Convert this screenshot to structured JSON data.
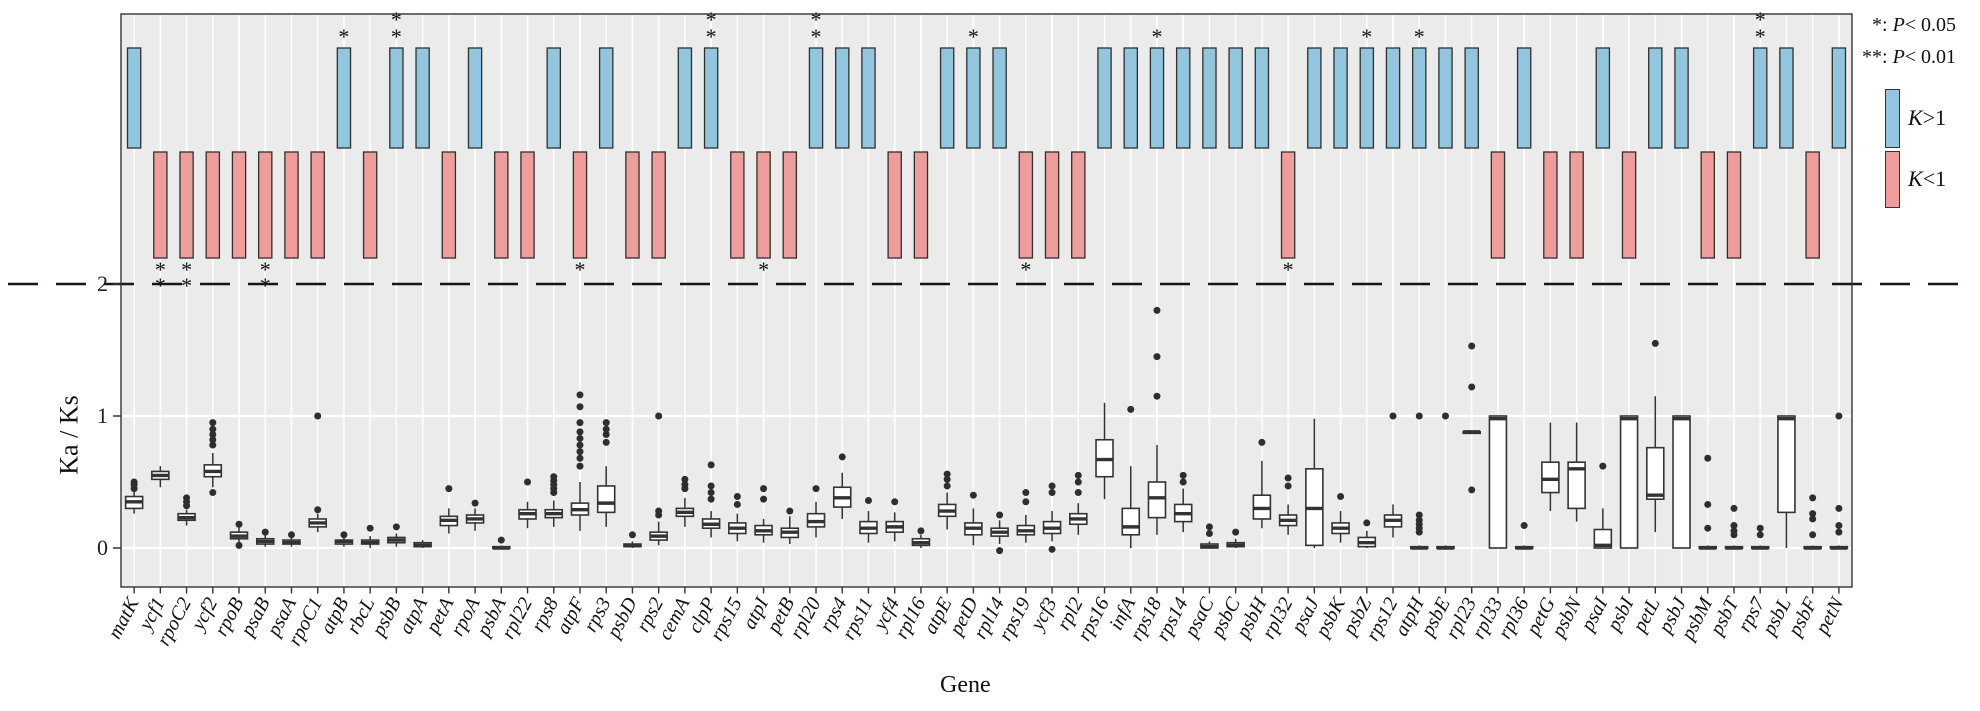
{
  "figure": {
    "xlabel": "Gene",
    "ylabel": "Ka / Ks",
    "yticks": [
      0,
      1,
      2
    ],
    "dashed_line_value": 2
  },
  "legend": {
    "sig1_pre": "*: ",
    "sig2_pre": "**: ",
    "p": "P",
    "sig1_rest": "< 0.05",
    "sig2_rest": "< 0.01",
    "k": "K",
    "kgt_rest": ">1",
    "klt_rest": "<1"
  },
  "colors": {
    "k_gt_fill": "#92C5DE",
    "k_lt_fill": "#EE9D9D",
    "bar_stroke": "#2f2f2f",
    "box_stroke": "#333333",
    "outlier_fill": "#2e2e2e",
    "panel_bg": "#EBEBEB",
    "gridline": "#FFFFFF",
    "dash_line": "#15151f",
    "text": "#111111"
  },
  "chart_data": {
    "type": "box+bar",
    "title": "",
    "xlabel": "Gene",
    "ylabel": "Ka / Ks",
    "ylim": [
      -0.3,
      2
    ],
    "note": "Each gene: k = K>1 (blue, gt) or K<1 (pink, lt); sig = asterisk count; box = [whisker_lo, q1, median, q3, whisker_hi]; outliers = points",
    "genes": [
      {
        "name": "matK",
        "k": "gt",
        "sig": 0,
        "box": [
          0.26,
          0.3,
          0.35,
          0.39,
          0.43
        ],
        "outliers": [
          0.45,
          0.48,
          0.5
        ]
      },
      {
        "name": "ycf1",
        "k": "lt",
        "sig": 2,
        "box": [
          0.46,
          0.52,
          0.55,
          0.58,
          0.62
        ],
        "outliers": []
      },
      {
        "name": "rpoC2",
        "k": "lt",
        "sig": 2,
        "box": [
          0.17,
          0.21,
          0.23,
          0.26,
          0.29
        ],
        "outliers": [
          0.32,
          0.35,
          0.38
        ]
      },
      {
        "name": "ycf2",
        "k": "lt",
        "sig": 0,
        "box": [
          0.46,
          0.54,
          0.58,
          0.63,
          0.72
        ],
        "outliers": [
          0.42,
          0.78,
          0.82,
          0.86,
          0.9,
          0.95
        ]
      },
      {
        "name": "rpoB",
        "k": "lt",
        "sig": 0,
        "box": [
          0.04,
          0.07,
          0.09,
          0.12,
          0.16
        ],
        "outliers": [
          0.02,
          0.18
        ]
      },
      {
        "name": "psaB",
        "k": "lt",
        "sig": 2,
        "box": [
          0.01,
          0.03,
          0.05,
          0.07,
          0.1
        ],
        "outliers": [
          0.12
        ]
      },
      {
        "name": "psaA",
        "k": "lt",
        "sig": 0,
        "box": [
          0.01,
          0.03,
          0.04,
          0.06,
          0.08
        ],
        "outliers": [
          0.1
        ]
      },
      {
        "name": "rpoC1",
        "k": "lt",
        "sig": 0,
        "box": [
          0.12,
          0.16,
          0.19,
          0.22,
          0.26
        ],
        "outliers": [
          0.29,
          1.0
        ]
      },
      {
        "name": "atpB",
        "k": "gt",
        "sig": 1,
        "box": [
          0.01,
          0.03,
          0.05,
          0.06,
          0.08
        ],
        "outliers": [
          0.1
        ]
      },
      {
        "name": "rbcL",
        "k": "lt",
        "sig": 0,
        "box": [
          0.0,
          0.03,
          0.04,
          0.06,
          0.09
        ],
        "outliers": [
          0.15
        ]
      },
      {
        "name": "psbB",
        "k": "gt",
        "sig": 2,
        "box": [
          0.01,
          0.04,
          0.06,
          0.08,
          0.11
        ],
        "outliers": [
          0.16
        ]
      },
      {
        "name": "atpA",
        "k": "gt",
        "sig": 0,
        "box": [
          0.0,
          0.01,
          0.02,
          0.04,
          0.06
        ],
        "outliers": []
      },
      {
        "name": "petA",
        "k": "lt",
        "sig": 0,
        "box": [
          0.11,
          0.17,
          0.21,
          0.24,
          0.3
        ],
        "outliers": [
          0.45
        ]
      },
      {
        "name": "rpoA",
        "k": "gt",
        "sig": 0,
        "box": [
          0.13,
          0.19,
          0.22,
          0.25,
          0.3
        ],
        "outliers": [
          0.34
        ]
      },
      {
        "name": "psbA",
        "k": "lt",
        "sig": 0,
        "box": [
          0.0,
          0.0,
          0.0,
          0.01,
          0.02
        ],
        "outliers": [
          0.06
        ]
      },
      {
        "name": "rpl22",
        "k": "lt",
        "sig": 0,
        "box": [
          0.15,
          0.22,
          0.26,
          0.29,
          0.35
        ],
        "outliers": [
          0.5
        ]
      },
      {
        "name": "rps8",
        "k": "gt",
        "sig": 0,
        "box": [
          0.16,
          0.23,
          0.26,
          0.29,
          0.36
        ],
        "outliers": [
          0.42,
          0.45,
          0.48,
          0.51,
          0.54
        ]
      },
      {
        "name": "atpF",
        "k": "lt",
        "sig": 1,
        "box": [
          0.13,
          0.25,
          0.29,
          0.34,
          0.5
        ],
        "outliers": [
          0.62,
          0.68,
          0.73,
          0.78,
          0.83,
          0.88,
          0.95,
          1.07,
          1.16
        ]
      },
      {
        "name": "rps3",
        "k": "gt",
        "sig": 0,
        "box": [
          0.16,
          0.27,
          0.34,
          0.47,
          0.62
        ],
        "outliers": [
          0.8,
          0.86,
          0.9,
          0.95
        ]
      },
      {
        "name": "psbD",
        "k": "lt",
        "sig": 0,
        "box": [
          0.0,
          0.01,
          0.02,
          0.03,
          0.05
        ],
        "outliers": [
          0.1
        ]
      },
      {
        "name": "rps2",
        "k": "lt",
        "sig": 0,
        "box": [
          0.02,
          0.06,
          0.09,
          0.12,
          0.2
        ],
        "outliers": [
          0.25,
          0.28,
          1.0
        ]
      },
      {
        "name": "cemA",
        "k": "gt",
        "sig": 0,
        "box": [
          0.16,
          0.24,
          0.27,
          0.3,
          0.38
        ],
        "outliers": [
          0.45,
          0.48,
          0.52
        ]
      },
      {
        "name": "clpP",
        "k": "gt",
        "sig": 2,
        "box": [
          0.08,
          0.15,
          0.18,
          0.22,
          0.28
        ],
        "outliers": [
          0.37,
          0.42,
          0.47,
          0.63
        ]
      },
      {
        "name": "rps15",
        "k": "lt",
        "sig": 0,
        "box": [
          0.05,
          0.11,
          0.15,
          0.19,
          0.26
        ],
        "outliers": [
          0.33,
          0.39
        ]
      },
      {
        "name": "atpI",
        "k": "lt",
        "sig": 1,
        "box": [
          0.04,
          0.1,
          0.13,
          0.17,
          0.22
        ],
        "outliers": [
          0.37,
          0.45
        ]
      },
      {
        "name": "petB",
        "k": "lt",
        "sig": 0,
        "box": [
          0.03,
          0.08,
          0.12,
          0.15,
          0.24
        ],
        "outliers": [
          0.28
        ]
      },
      {
        "name": "rpl20",
        "k": "gt",
        "sig": 2,
        "box": [
          0.08,
          0.16,
          0.2,
          0.26,
          0.35
        ],
        "outliers": [
          0.45
        ]
      },
      {
        "name": "rps4",
        "k": "gt",
        "sig": 0,
        "box": [
          0.22,
          0.31,
          0.38,
          0.46,
          0.57
        ],
        "outliers": [
          0.69
        ]
      },
      {
        "name": "rps11",
        "k": "gt",
        "sig": 0,
        "box": [
          0.04,
          0.11,
          0.15,
          0.2,
          0.28
        ],
        "outliers": [
          0.36
        ]
      },
      {
        "name": "ycf4",
        "k": "lt",
        "sig": 0,
        "box": [
          0.05,
          0.12,
          0.16,
          0.2,
          0.27
        ],
        "outliers": [
          0.35
        ]
      },
      {
        "name": "rpl16",
        "k": "lt",
        "sig": 0,
        "box": [
          0.0,
          0.02,
          0.04,
          0.07,
          0.1
        ],
        "outliers": [
          0.13
        ]
      },
      {
        "name": "atpE",
        "k": "gt",
        "sig": 0,
        "box": [
          0.14,
          0.24,
          0.28,
          0.33,
          0.42
        ],
        "outliers": [
          0.47,
          0.52,
          0.56
        ]
      },
      {
        "name": "petD",
        "k": "gt",
        "sig": 1,
        "box": [
          0.02,
          0.1,
          0.15,
          0.19,
          0.3
        ],
        "outliers": [
          0.4
        ]
      },
      {
        "name": "rpl14",
        "k": "gt",
        "sig": 0,
        "box": [
          0.03,
          0.09,
          0.12,
          0.15,
          0.21
        ],
        "outliers": [
          -0.02,
          0.25
        ]
      },
      {
        "name": "rps19",
        "k": "lt",
        "sig": 1,
        "box": [
          0.04,
          0.1,
          0.13,
          0.17,
          0.25
        ],
        "outliers": [
          0.35,
          0.42
        ]
      },
      {
        "name": "ycf3",
        "k": "lt",
        "sig": 0,
        "box": [
          0.05,
          0.11,
          0.15,
          0.2,
          0.28
        ],
        "outliers": [
          -0.01,
          0.42,
          0.47
        ]
      },
      {
        "name": "rpl2",
        "k": "lt",
        "sig": 0,
        "box": [
          0.1,
          0.18,
          0.22,
          0.26,
          0.34
        ],
        "outliers": [
          0.42,
          0.5,
          0.55
        ]
      },
      {
        "name": "rps16",
        "k": "gt",
        "sig": 0,
        "box": [
          0.37,
          0.54,
          0.67,
          0.82,
          1.1
        ],
        "outliers": []
      },
      {
        "name": "infA",
        "k": "gt",
        "sig": 0,
        "box": [
          0.0,
          0.1,
          0.16,
          0.3,
          0.62
        ],
        "outliers": [
          1.05
        ]
      },
      {
        "name": "rps18",
        "k": "gt",
        "sig": 1,
        "box": [
          0.1,
          0.23,
          0.38,
          0.5,
          0.78
        ],
        "outliers": [
          1.15,
          1.45,
          1.8
        ]
      },
      {
        "name": "rps14",
        "k": "gt",
        "sig": 0,
        "box": [
          0.12,
          0.2,
          0.26,
          0.33,
          0.45
        ],
        "outliers": [
          0.5,
          0.55
        ]
      },
      {
        "name": "psaC",
        "k": "gt",
        "sig": 0,
        "box": [
          0.0,
          0.0,
          0.01,
          0.03,
          0.05
        ],
        "outliers": [
          0.11,
          0.16
        ]
      },
      {
        "name": "psbC",
        "k": "gt",
        "sig": 0,
        "box": [
          0.0,
          0.01,
          0.02,
          0.04,
          0.07
        ],
        "outliers": [
          0.12
        ]
      },
      {
        "name": "psbH",
        "k": "gt",
        "sig": 0,
        "box": [
          0.15,
          0.22,
          0.3,
          0.4,
          0.66
        ],
        "outliers": [
          0.8
        ]
      },
      {
        "name": "rpl32",
        "k": "lt",
        "sig": 1,
        "box": [
          0.1,
          0.17,
          0.21,
          0.25,
          0.33
        ],
        "outliers": [
          0.47,
          0.53
        ]
      },
      {
        "name": "psaJ",
        "k": "gt",
        "sig": 0,
        "box": [
          0.0,
          0.02,
          0.3,
          0.6,
          0.98
        ],
        "outliers": []
      },
      {
        "name": "psbK",
        "k": "gt",
        "sig": 0,
        "box": [
          0.04,
          0.11,
          0.15,
          0.19,
          0.28
        ],
        "outliers": [
          0.39
        ]
      },
      {
        "name": "psbZ",
        "k": "gt",
        "sig": 1,
        "box": [
          0.0,
          0.01,
          0.04,
          0.08,
          0.13
        ],
        "outliers": [
          0.19
        ]
      },
      {
        "name": "rps12",
        "k": "gt",
        "sig": 0,
        "box": [
          0.08,
          0.16,
          0.21,
          0.25,
          0.33
        ],
        "outliers": [
          1.0
        ]
      },
      {
        "name": "atpH",
        "k": "gt",
        "sig": 1,
        "box": [
          0.0,
          0.0,
          0.0,
          0.01,
          0.02
        ],
        "outliers": [
          0.12,
          0.15,
          0.18,
          0.21,
          0.25,
          1.0
        ]
      },
      {
        "name": "psbE",
        "k": "gt",
        "sig": 0,
        "box": [
          0.0,
          0.0,
          0.0,
          0.01,
          0.02
        ],
        "outliers": [
          1.0
        ]
      },
      {
        "name": "rpl23",
        "k": "gt",
        "sig": 0,
        "box": [
          0.88,
          0.88,
          0.88,
          0.88,
          0.88
        ],
        "outliers": [
          0.44,
          1.22,
          1.53
        ]
      },
      {
        "name": "rpl33",
        "k": "lt",
        "sig": 0,
        "box": [
          0.0,
          0.0,
          0.98,
          1.0,
          1.0
        ],
        "outliers": []
      },
      {
        "name": "rpl36",
        "k": "gt",
        "sig": 0,
        "box": [
          0.0,
          0.0,
          0.0,
          0.01,
          0.02
        ],
        "outliers": [
          0.17
        ]
      },
      {
        "name": "petG",
        "k": "lt",
        "sig": 0,
        "box": [
          0.28,
          0.42,
          0.52,
          0.65,
          0.95
        ],
        "outliers": []
      },
      {
        "name": "psbN",
        "k": "lt",
        "sig": 0,
        "box": [
          0.2,
          0.3,
          0.6,
          0.65,
          0.95
        ],
        "outliers": []
      },
      {
        "name": "psaI",
        "k": "gt",
        "sig": 0,
        "box": [
          0.0,
          0.0,
          0.02,
          0.14,
          0.3
        ],
        "outliers": [
          0.62
        ]
      },
      {
        "name": "psbI",
        "k": "lt",
        "sig": 0,
        "box": [
          0.0,
          0.0,
          0.98,
          1.0,
          1.0
        ],
        "outliers": []
      },
      {
        "name": "petL",
        "k": "gt",
        "sig": 0,
        "box": [
          0.12,
          0.37,
          0.4,
          0.76,
          1.15
        ],
        "outliers": [
          1.55
        ]
      },
      {
        "name": "psbJ",
        "k": "gt",
        "sig": 0,
        "box": [
          0.0,
          0.0,
          0.98,
          1.0,
          1.0
        ],
        "outliers": []
      },
      {
        "name": "psbM",
        "k": "lt",
        "sig": 0,
        "box": [
          0.0,
          0.0,
          0.0,
          0.01,
          0.02
        ],
        "outliers": [
          0.15,
          0.33,
          0.68
        ]
      },
      {
        "name": "psbT",
        "k": "lt",
        "sig": 0,
        "box": [
          0.0,
          0.0,
          0.0,
          0.01,
          0.02
        ],
        "outliers": [
          0.1,
          0.13,
          0.17,
          0.3
        ]
      },
      {
        "name": "rps7",
        "k": "gt",
        "sig": 2,
        "box": [
          0.0,
          0.0,
          0.0,
          0.01,
          0.02
        ],
        "outliers": [
          0.1,
          0.15
        ]
      },
      {
        "name": "psbL",
        "k": "gt",
        "sig": 0,
        "box": [
          0.0,
          0.27,
          0.98,
          1.0,
          1.0
        ],
        "outliers": []
      },
      {
        "name": "psbF",
        "k": "lt",
        "sig": 0,
        "box": [
          0.0,
          0.0,
          0.0,
          0.01,
          0.02
        ],
        "outliers": [
          0.1,
          0.22,
          0.26,
          0.38
        ]
      },
      {
        "name": "petN",
        "k": "gt",
        "sig": 0,
        "box": [
          0.0,
          0.0,
          0.0,
          0.01,
          0.02
        ],
        "outliers": [
          0.12,
          0.17,
          0.3,
          1.0
        ]
      }
    ]
  }
}
